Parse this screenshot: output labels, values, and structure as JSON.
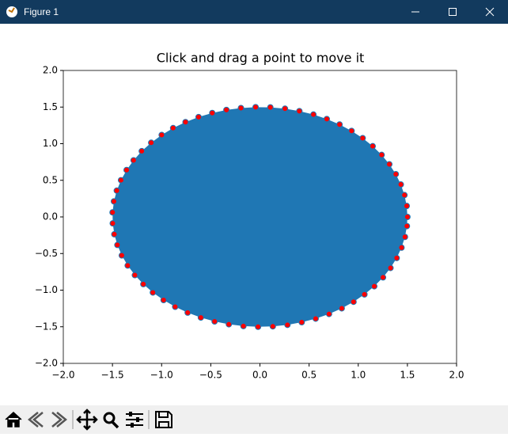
{
  "window": {
    "title": "Figure 1"
  },
  "chart_data": {
    "type": "polygon",
    "title": "Click and drag a point to move it",
    "x": [
      1.5,
      1.493,
      1.47,
      1.433,
      1.382,
      1.316,
      1.238,
      1.147,
      1.045,
      0.932,
      0.81,
      0.68,
      0.544,
      0.401,
      0.255,
      0.106,
      -0.044,
      -0.193,
      -0.341,
      -0.485,
      -0.624,
      -0.757,
      -0.883,
      -0.999,
      -1.106,
      -1.202,
      -1.285,
      -1.356,
      -1.413,
      -1.456,
      -1.485,
      -1.499,
      -1.497,
      -1.481,
      -1.45,
      -1.405,
      -1.345,
      -1.272,
      -1.186,
      -1.089,
      -0.98,
      -0.862,
      -0.735,
      -0.601,
      -0.461,
      -0.316,
      -0.168,
      -0.019,
      0.131,
      0.28,
      0.425,
      0.567,
      0.703,
      0.832,
      0.952,
      1.063,
      1.163,
      1.252,
      1.328,
      1.391,
      1.44,
      1.475,
      1.495
    ],
    "y": [
      0,
      0.15,
      0.298,
      0.443,
      0.584,
      0.719,
      0.847,
      0.966,
      1.076,
      1.175,
      1.262,
      1.337,
      1.398,
      1.445,
      1.478,
      1.496,
      1.499,
      1.487,
      1.461,
      1.419,
      1.364,
      1.295,
      1.213,
      1.119,
      1.013,
      0.898,
      0.773,
      0.641,
      0.502,
      0.359,
      0.212,
      0.062,
      -0.088,
      -0.237,
      -0.383,
      -0.526,
      -0.664,
      -0.795,
      -0.918,
      -1.032,
      -1.135,
      -1.227,
      -1.307,
      -1.374,
      -1.427,
      -1.466,
      -1.491,
      -1.5,
      -1.494,
      -1.474,
      -1.438,
      -1.389,
      -1.325,
      -1.248,
      -1.159,
      -1.058,
      -0.947,
      -0.826,
      -0.697,
      -0.561,
      -0.419,
      -0.273,
      -0.125
    ],
    "fill_color": "#1f77b4",
    "marker_color": "#ff0000",
    "marker_edge_color": "#1f77b4",
    "xlim": [
      -2,
      2
    ],
    "ylim": [
      -2,
      2
    ],
    "xticks": [
      {
        "value": -2,
        "label": "−2.0"
      },
      {
        "value": -1.5,
        "label": "−1.5"
      },
      {
        "value": -1,
        "label": "−1.0"
      },
      {
        "value": -0.5,
        "label": "−0.5"
      },
      {
        "value": 0,
        "label": "0.0"
      },
      {
        "value": 0.5,
        "label": "0.5"
      },
      {
        "value": 1,
        "label": "1.0"
      },
      {
        "value": 1.5,
        "label": "1.5"
      },
      {
        "value": 2,
        "label": "2.0"
      }
    ],
    "yticks": [
      {
        "value": -2,
        "label": "−2.0"
      },
      {
        "value": -1.5,
        "label": "−1.5"
      },
      {
        "value": -1,
        "label": "−1.0"
      },
      {
        "value": -0.5,
        "label": "−0.5"
      },
      {
        "value": 0,
        "label": "0.0"
      },
      {
        "value": 0.5,
        "label": "0.5"
      },
      {
        "value": 1,
        "label": "1.0"
      },
      {
        "value": 1.5,
        "label": "1.5"
      },
      {
        "value": 2,
        "label": "2.0"
      }
    ]
  }
}
